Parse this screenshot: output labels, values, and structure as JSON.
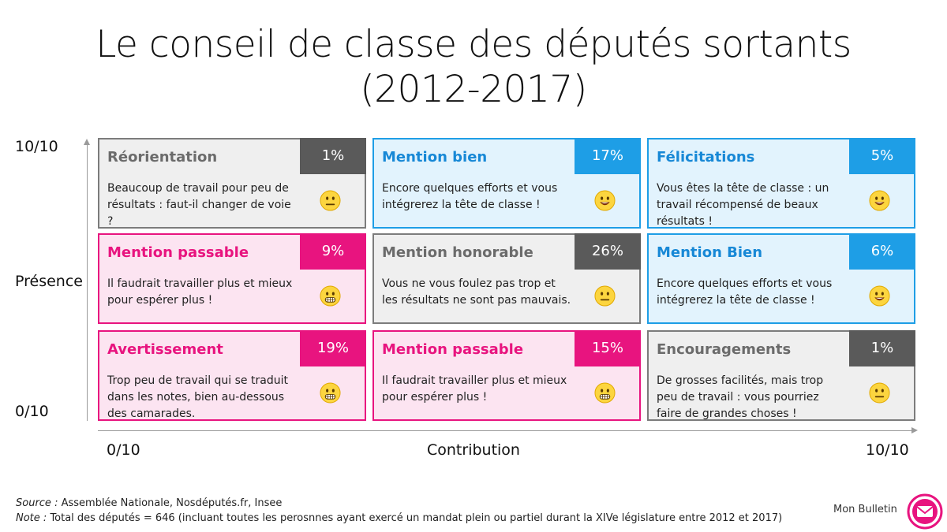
{
  "title_line1": "Le conseil de classe des députés sortants",
  "title_line2": "(2012-2017)",
  "y_axis": {
    "top": "10/10",
    "middle": "Présence",
    "bottom": "0/10"
  },
  "x_axis": {
    "left": "0/10",
    "middle": "Contribution",
    "right": "10/10"
  },
  "colors": {
    "grey": "#5a5a5a",
    "pink": "#e8147f",
    "blue": "#1e9ee6"
  },
  "cells": [
    {
      "name": "Réorientation",
      "pct": "1%",
      "desc": "Beaucoup de travail pour peu de résultats : faut-il changer de voie ?",
      "color": "grey",
      "emoji": "neutral-face-icon"
    },
    {
      "name": "Mention bien",
      "pct": "17%",
      "desc": "Encore quelques efforts et vous intégrerez la tête de classe !",
      "color": "blue",
      "emoji": "smiling-face-icon"
    },
    {
      "name": "Félicitations",
      "pct": "5%",
      "desc": "Vous êtes la tête de classe : un travail récompensé de beaux résultats !",
      "color": "blue",
      "emoji": "smiling-face-icon"
    },
    {
      "name": "Mention passable",
      "pct": "9%",
      "desc": "Il faudrait travailler plus et mieux pour espérer plus !",
      "color": "pink",
      "emoji": "grimacing-face-icon"
    },
    {
      "name": "Mention honorable",
      "pct": "26%",
      "desc": "Vous ne vous foulez pas trop et les résultats ne sont pas mauvais.",
      "color": "grey",
      "emoji": "neutral-face-icon"
    },
    {
      "name": "Mention Bien",
      "pct": "6%",
      "desc": "Encore quelques efforts et vous intégrerez la tête de classe !",
      "color": "blue",
      "emoji": "smiling-face-icon"
    },
    {
      "name": "Avertissement",
      "pct": "19%",
      "desc": "Trop peu de travail qui se traduit dans les notes, bien au-dessous des camarades.",
      "color": "pink",
      "emoji": "grimacing-face-icon"
    },
    {
      "name": "Mention passable",
      "pct": "15%",
      "desc": "Il faudrait travailler plus et mieux pour espérer plus !",
      "color": "pink",
      "emoji": "grimacing-face-icon"
    },
    {
      "name": "Encouragements",
      "pct": "1%",
      "desc": "De grosses facilités, mais trop peu de travail : vous pourriez faire de grandes choses !",
      "color": "grey",
      "emoji": "neutral-face-icon"
    }
  ],
  "source_label": "Source :",
  "source_text": "Assemblée Nationale, Nosdéputés.fr, Insee",
  "note_label": "Note :",
  "note_text": "Total des députés = 646 (incluant toutes les perosnnes ayant exercé un mandat plein ou partiel durant la XIVe législature entre 2012 et 2017)",
  "brand": "Mon Bulletin"
}
